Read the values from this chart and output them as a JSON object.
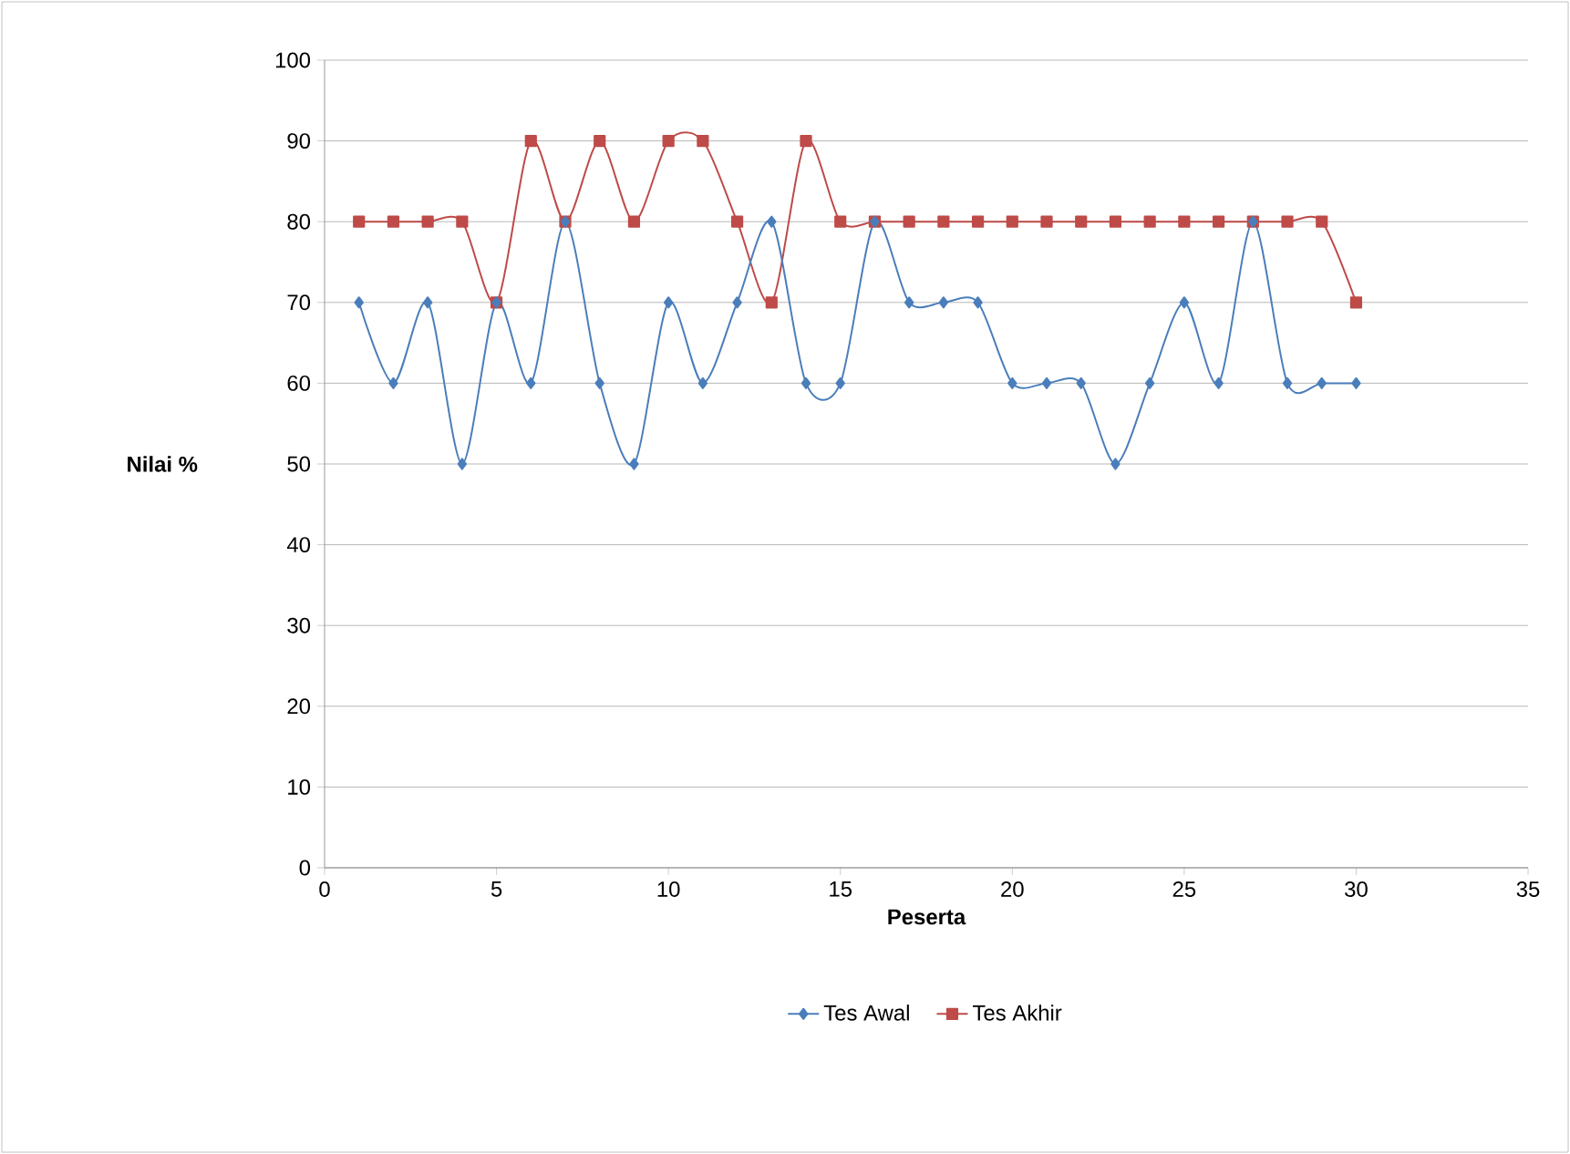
{
  "chart_data": {
    "type": "line",
    "xlabel": "Peserta",
    "ylabel": "Nilai %",
    "x": [
      1,
      2,
      3,
      4,
      5,
      6,
      7,
      8,
      9,
      10,
      11,
      12,
      13,
      14,
      15,
      16,
      17,
      18,
      19,
      20,
      21,
      22,
      23,
      24,
      25,
      26,
      27,
      28,
      29,
      30
    ],
    "series": [
      {
        "name": "Tes Awal",
        "color": "#4a7ebb",
        "marker": "diamond",
        "values": [
          70,
          60,
          70,
          50,
          70,
          60,
          80,
          60,
          50,
          70,
          60,
          70,
          80,
          60,
          60,
          80,
          70,
          70,
          70,
          60,
          60,
          60,
          50,
          60,
          70,
          60,
          80,
          60,
          60,
          60
        ]
      },
      {
        "name": "Tes Akhir",
        "color": "#be4b48",
        "marker": "square",
        "values": [
          80,
          80,
          80,
          80,
          70,
          90,
          80,
          90,
          80,
          90,
          90,
          80,
          70,
          90,
          80,
          80,
          80,
          80,
          80,
          80,
          80,
          80,
          80,
          80,
          80,
          80,
          80,
          80,
          80,
          70
        ]
      }
    ],
    "xlim": [
      0,
      35
    ],
    "xticks": [
      0,
      5,
      10,
      15,
      20,
      25,
      30,
      35
    ],
    "ylim": [
      0,
      100
    ],
    "yticks": [
      0,
      10,
      20,
      30,
      40,
      50,
      60,
      70,
      80,
      90,
      100
    ],
    "grid": "y",
    "legend": "bottom",
    "line_style": "solid"
  }
}
